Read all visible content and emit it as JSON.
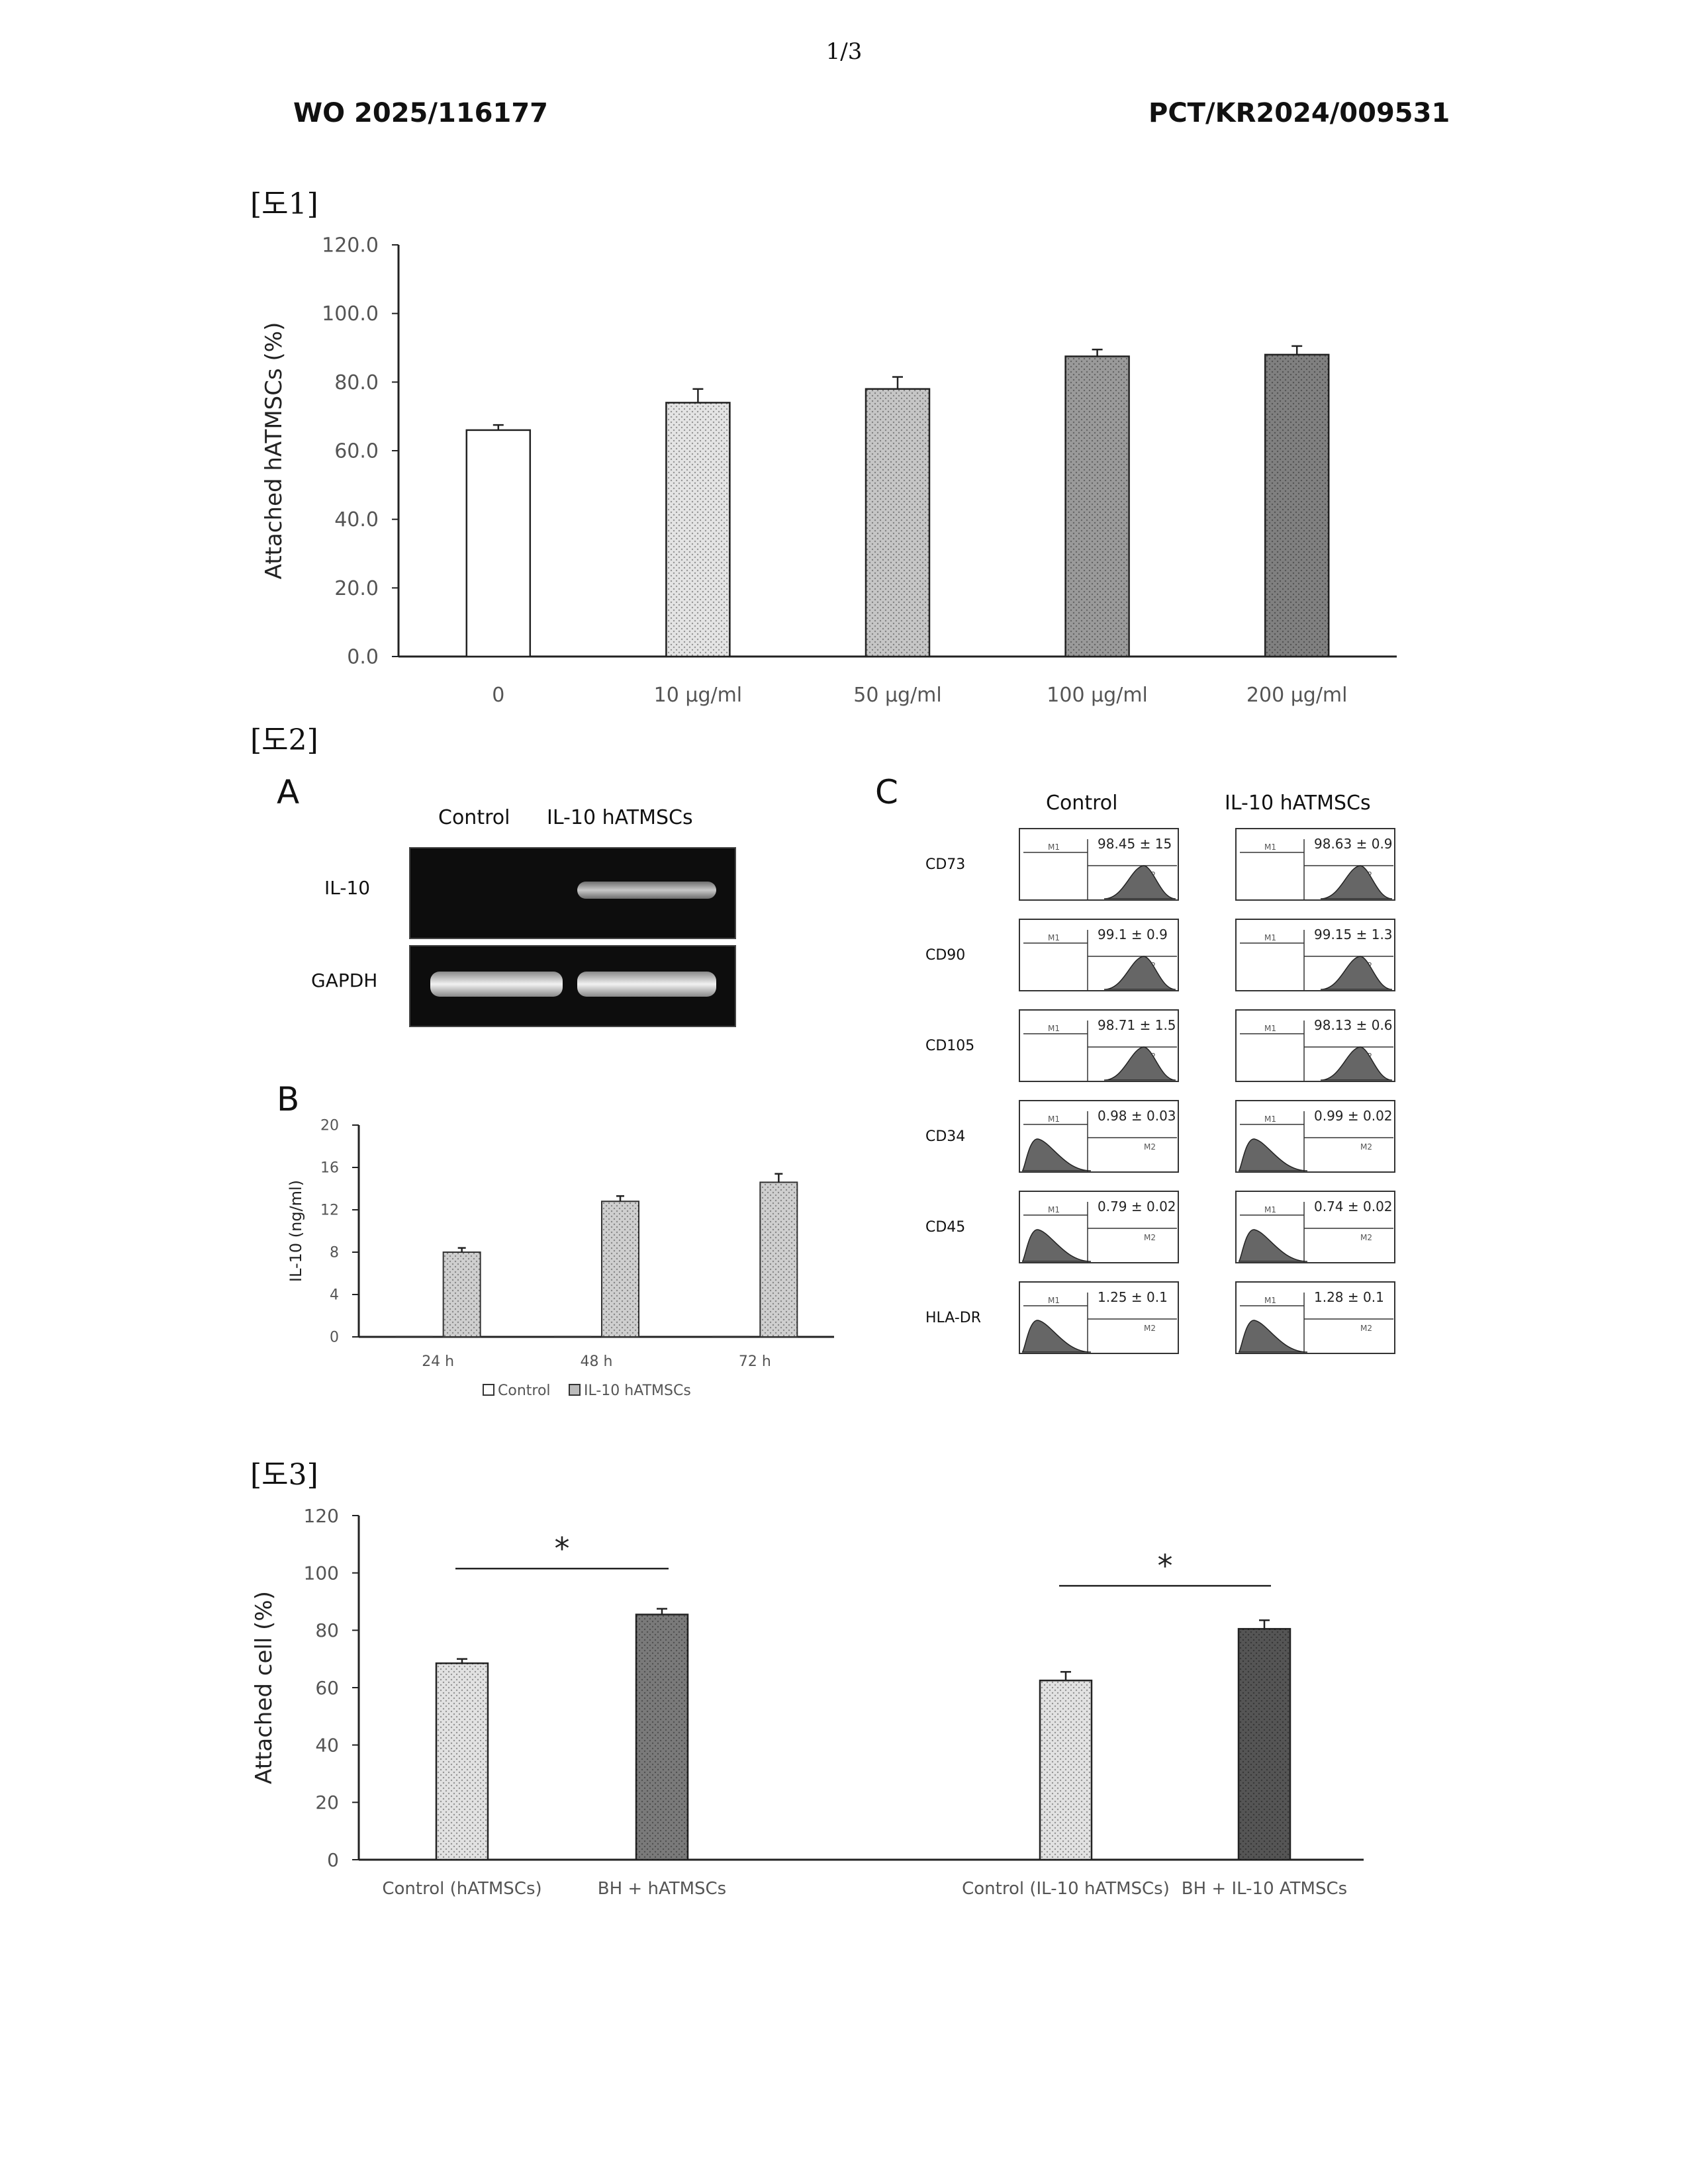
{
  "page": {
    "page_number": "1/3",
    "doc_number_left": "WO 2025/116177",
    "doc_number_right": "PCT/KR2024/009531"
  },
  "figures": {
    "fig1_label": "[도1]",
    "fig2_label": "[도2]",
    "fig3_label": "[도3]"
  },
  "panel_a": {
    "label": "A",
    "col_control": "Control",
    "col_il10": "IL-10 hATMSCs",
    "row_il10": "IL-10",
    "row_gapdh": "GAPDH"
  },
  "panel_b": {
    "label": "B"
  },
  "panel_c": {
    "label": "C",
    "col_control": "Control",
    "col_il10": "IL-10 hATMSCs",
    "markers": [
      "CD73",
      "CD90",
      "CD105",
      "CD34",
      "CD45",
      "HLA-DR"
    ],
    "control_values": [
      "98.45 ± 15",
      "99.1 ± 0.9",
      "98.71 ± 1.5",
      "0.98 ± 0.03",
      "0.79 ± 0.02",
      "1.25 ± 0.1"
    ],
    "il10_values": [
      "98.63 ± 0.9",
      "99.15 ± 1.3",
      "98.13 ± 0.6",
      "0.99 ± 0.02",
      "0.74 ± 0.02",
      "1.28 ± 0.1"
    ],
    "gate_m1": "M1",
    "gate_m2": "M2"
  },
  "chart_data": [
    {
      "id": "fig1",
      "type": "bar",
      "categories": [
        "0",
        "10 μg/ml",
        "50 μg/ml",
        "100 μg/ml",
        "200 μg/ml"
      ],
      "values": [
        66.0,
        74.0,
        78.0,
        87.5,
        88.0
      ],
      "errors": [
        1.5,
        4.0,
        3.5,
        2.0,
        2.5
      ],
      "ylabel": "Attached hATMSCs (%)",
      "ylim": [
        0,
        120
      ],
      "yticks": [
        "0.0",
        "20.0",
        "40.0",
        "60.0",
        "80.0",
        "100.0",
        "120.0"
      ],
      "fills": [
        "#ffffff",
        "#e4e4e4",
        "#c6c6c6",
        "#9a9a9a",
        "#808080"
      ]
    },
    {
      "id": "fig2b",
      "type": "bar",
      "categories": [
        "24 h",
        "48 h",
        "72 h"
      ],
      "series": [
        {
          "name": "Control",
          "values": [
            0.1,
            0.1,
            0.1
          ],
          "errors": [
            0,
            0,
            0
          ]
        },
        {
          "name": "IL-10 hATMSCs",
          "values": [
            8.0,
            12.8,
            14.6
          ],
          "errors": [
            0.4,
            0.5,
            0.8
          ]
        }
      ],
      "ylabel": "IL-10 (ng/ml)",
      "ylim": [
        0,
        20
      ],
      "yticks": [
        "0",
        "4",
        "8",
        "12",
        "16",
        "20"
      ],
      "legend": "bottom"
    },
    {
      "id": "fig3",
      "type": "bar",
      "categories": [
        "Control (hATMSCs)",
        "BH + hATMSCs",
        "Control (IL-10 hATMSCs)",
        "BH + IL-10 ATMSCs"
      ],
      "values": [
        68.5,
        85.5,
        62.5,
        80.5
      ],
      "errors": [
        1.5,
        2.0,
        3.0,
        3.0
      ],
      "ylabel": "Attached cell  (%)",
      "ylim": [
        0,
        120
      ],
      "yticks": [
        "0",
        "20",
        "40",
        "60",
        "80",
        "100",
        "120"
      ],
      "significance": [
        "*",
        "*"
      ],
      "fills": [
        "#e2e2e2",
        "#7a7a7a",
        "#e2e2e2",
        "#555555"
      ]
    }
  ]
}
